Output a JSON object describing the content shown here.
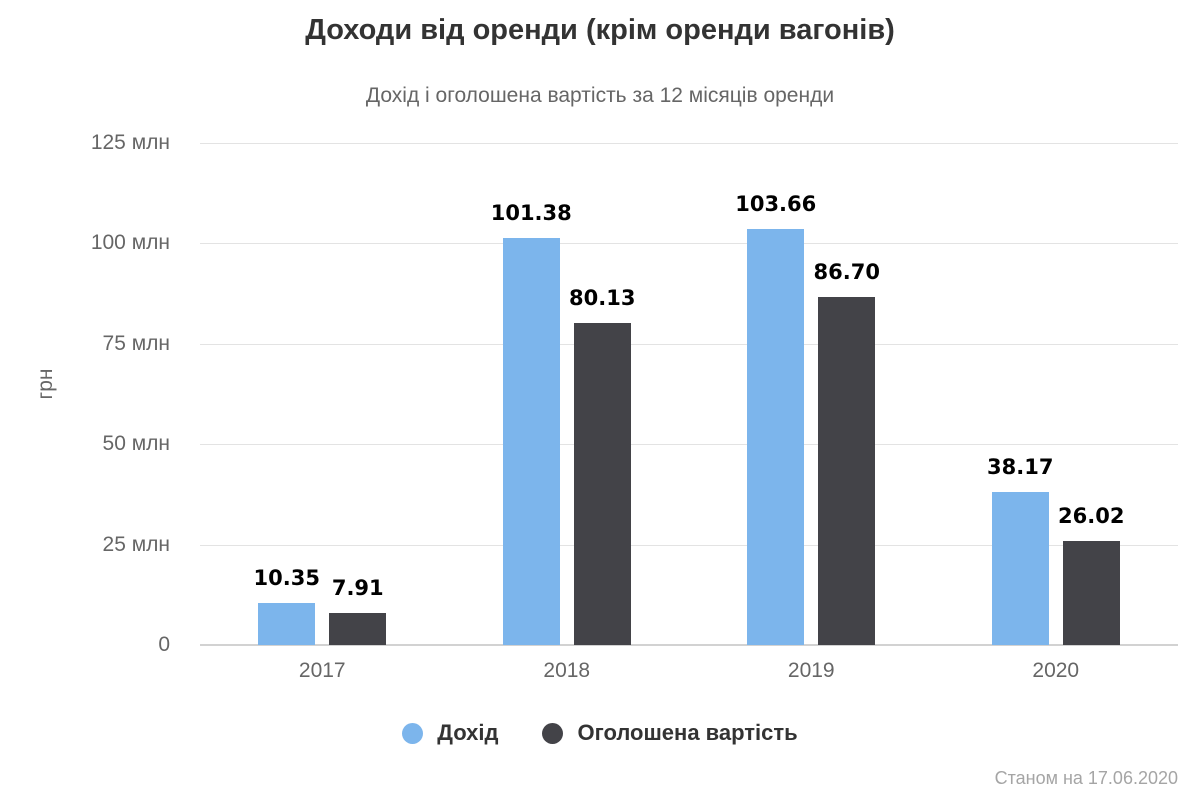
{
  "footer": {
    "as_of": "Станом на 17.06.2020"
  },
  "colors": {
    "income": "#7cb5ec",
    "declared": "#434348",
    "grid": "#e3e3e3",
    "axis": "#d2d2d2",
    "title_text": "#333333",
    "muted_text": "#666666",
    "footer_text": "#a5a5a5"
  },
  "chart_data": {
    "type": "bar",
    "title": "Доходи від оренди (крім оренди вагонів)",
    "subtitle": "Дохід і оголошена вартість за 12 місяців оренди",
    "ylabel": "грн",
    "ylim": [
      0,
      125
    ],
    "grid": true,
    "legend_position": "bottom",
    "value_label_decimals": 2,
    "yticks": [
      {
        "value": 125,
        "label": "125 млн"
      },
      {
        "value": 100,
        "label": "100 млн"
      },
      {
        "value": 75,
        "label": "75 млн"
      },
      {
        "value": 50,
        "label": "50 млн"
      },
      {
        "value": 25,
        "label": "25 млн"
      },
      {
        "value": 0,
        "label": "0"
      }
    ],
    "categories": [
      "2017",
      "2018",
      "2019",
      "2020"
    ],
    "series": [
      {
        "id": "income",
        "name": "Дохід",
        "color": "#7cb5ec",
        "values": [
          10.35,
          101.38,
          103.66,
          38.17
        ]
      },
      {
        "id": "declared",
        "name": "Оголошена вартість",
        "color": "#434348",
        "values": [
          7.91,
          80.13,
          86.7,
          26.02
        ]
      }
    ]
  }
}
